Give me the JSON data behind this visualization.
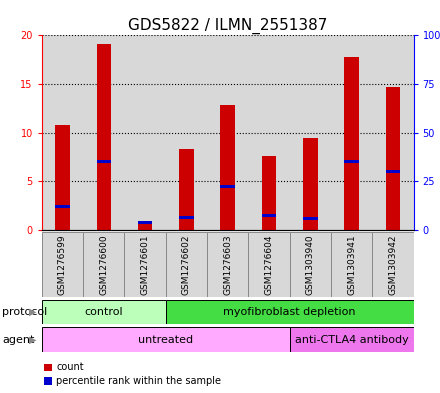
{
  "title": "GDS5822 / ILMN_2551387",
  "samples": [
    "GSM1276599",
    "GSM1276600",
    "GSM1276601",
    "GSM1276602",
    "GSM1276603",
    "GSM1276604",
    "GSM1303940",
    "GSM1303941",
    "GSM1303942"
  ],
  "counts": [
    10.8,
    19.1,
    0.8,
    8.3,
    12.8,
    7.6,
    9.4,
    17.8,
    14.7
  ],
  "percentiles": [
    12.0,
    35.0,
    4.0,
    6.5,
    22.5,
    7.5,
    6.0,
    35.0,
    30.0
  ],
  "left_ylim": [
    0,
    20
  ],
  "right_ylim": [
    0,
    100
  ],
  "left_yticks": [
    0,
    5,
    10,
    15,
    20
  ],
  "right_yticks": [
    0,
    25,
    50,
    75,
    100
  ],
  "right_yticklabels": [
    "0",
    "25",
    "50",
    "75",
    "100%"
  ],
  "bar_color": "#cc0000",
  "percentile_color": "#0000cc",
  "protocol_labels": [
    {
      "text": "control",
      "start": 0,
      "end": 3,
      "color": "#bbffbb"
    },
    {
      "text": "myofibroblast depletion",
      "start": 3,
      "end": 9,
      "color": "#44dd44"
    }
  ],
  "agent_labels": [
    {
      "text": "untreated",
      "start": 0,
      "end": 6,
      "color": "#ffaaff"
    },
    {
      "text": "anti-CTLA4 antibody",
      "start": 6,
      "end": 9,
      "color": "#ee77ee"
    }
  ],
  "protocol_row_label": "protocol",
  "agent_row_label": "agent",
  "legend_count_label": "count",
  "legend_percentile_label": "percentile rank within the sample",
  "bar_width": 0.35,
  "tick_label_fontsize": 7,
  "title_fontsize": 11,
  "annotation_fontsize": 8,
  "bg_color": "#d8d8d8",
  "sample_label_fontsize": 6.5
}
